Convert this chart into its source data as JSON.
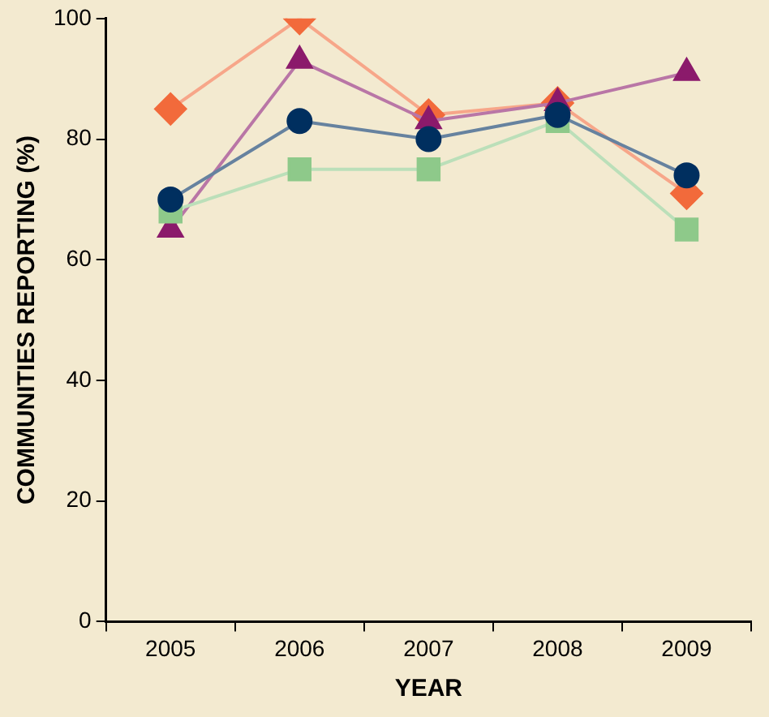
{
  "chart_data": {
    "type": "line",
    "xlabel": "YEAR",
    "ylabel": "COMMUNITIES REPORTING (%)",
    "categories": [
      "2005",
      "2006",
      "2007",
      "2008",
      "2009"
    ],
    "series": [
      {
        "color": "#f26a3b",
        "marker": "diamond",
        "values": [
          85,
          100,
          84,
          86,
          71
        ]
      },
      {
        "color": "#8b1a6b",
        "marker": "triangle",
        "values": [
          65,
          93,
          83,
          86,
          91
        ]
      },
      {
        "color": "#8ec98a",
        "marker": "square",
        "values": [
          68,
          75,
          75,
          83,
          65
        ]
      },
      {
        "color": "#002f5f",
        "marker": "circle",
        "values": [
          70,
          83,
          80,
          84,
          74
        ]
      }
    ],
    "ylim": [
      0,
      100
    ],
    "yticks": [
      0,
      20,
      40,
      60,
      80,
      100
    ],
    "grid": false,
    "legend": false
  }
}
